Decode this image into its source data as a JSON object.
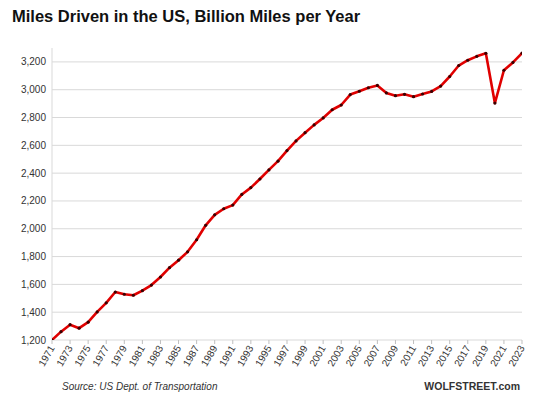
{
  "chart_data": {
    "type": "line",
    "title": "Miles Driven in the US, Billion Miles per Year",
    "source": "Source: US Dept. of Transportation",
    "credit": "WOLFSTREET.com",
    "x": [
      1971,
      1972,
      1973,
      1974,
      1975,
      1976,
      1977,
      1978,
      1979,
      1980,
      1981,
      1982,
      1983,
      1984,
      1985,
      1986,
      1987,
      1988,
      1989,
      1990,
      1991,
      1992,
      1993,
      1994,
      1995,
      1996,
      1997,
      1998,
      1999,
      2000,
      2001,
      2002,
      2003,
      2004,
      2005,
      2006,
      2007,
      2008,
      2009,
      2010,
      2011,
      2012,
      2013,
      2014,
      2015,
      2016,
      2017,
      2018,
      2019,
      2020,
      2021,
      2022,
      2023
    ],
    "values": [
      1200,
      1260,
      1310,
      1285,
      1328,
      1402,
      1467,
      1545,
      1529,
      1522,
      1555,
      1595,
      1653,
      1720,
      1774,
      1834,
      1921,
      2025,
      2100,
      2144,
      2170,
      2247,
      2296,
      2358,
      2423,
      2486,
      2562,
      2632,
      2691,
      2747,
      2797,
      2856,
      2890,
      2965,
      2989,
      3014,
      3031,
      2977,
      2957,
      2967,
      2950,
      2969,
      2988,
      3026,
      3095,
      3174,
      3212,
      3240,
      3262,
      2904,
      3140,
      3196,
      3263
    ],
    "color": "#e00000",
    "marker": "circle",
    "xlim": [
      1971,
      2023
    ],
    "xticks": [
      1971,
      1973,
      1975,
      1977,
      1979,
      1981,
      1983,
      1985,
      1987,
      1989,
      1991,
      1993,
      1995,
      1997,
      1999,
      2001,
      2003,
      2005,
      2007,
      2009,
      2011,
      2013,
      2015,
      2017,
      2019,
      2021,
      2023
    ],
    "ylim": [
      1200,
      3300
    ],
    "yticks": [
      {
        "value": 1200,
        "label": "1,200"
      },
      {
        "value": 1400,
        "label": "1,400"
      },
      {
        "value": 1600,
        "label": "1,600"
      },
      {
        "value": 1800,
        "label": "1,800"
      },
      {
        "value": 2000,
        "label": "2,000"
      },
      {
        "value": 2200,
        "label": "2,200"
      },
      {
        "value": 2400,
        "label": "2,400"
      },
      {
        "value": 2600,
        "label": "2,600"
      },
      {
        "value": 2800,
        "label": "2,800"
      },
      {
        "value": 3000,
        "label": "3,000"
      },
      {
        "value": 3200,
        "label": "3,200"
      }
    ],
    "grid": true
  }
}
